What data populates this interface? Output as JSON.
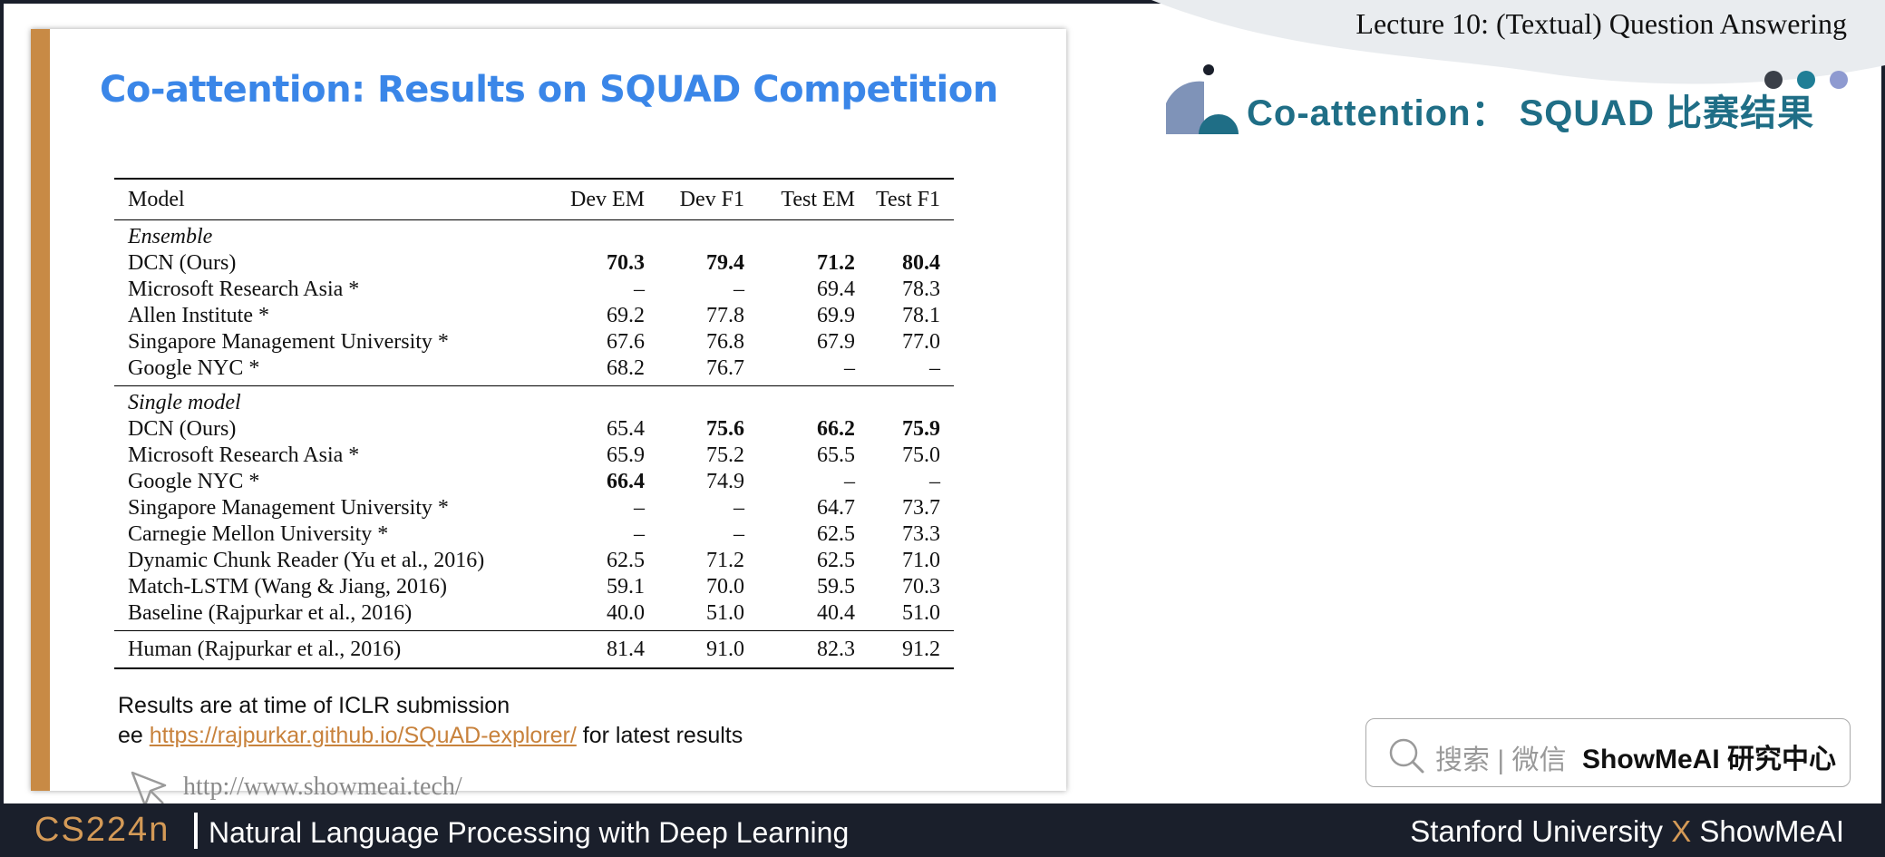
{
  "header": {
    "lecture_title": "Lecture 10: (Textual) Question Answering",
    "section_title": "Co-attention： SQUAD 比赛结果"
  },
  "slide": {
    "title": "Co-attention: Results on SQUAD Competition",
    "table": {
      "columns": [
        "Model",
        "Dev EM",
        "Dev F1",
        "Test EM",
        "Test F1"
      ],
      "groups": [
        {
          "label": "Ensemble",
          "rows": [
            {
              "model": "DCN (Ours)",
              "dev_em": "70.3",
              "dev_f1": "79.4",
              "test_em": "71.2",
              "test_f1": "80.4"
            },
            {
              "model": "Microsoft Research Asia *",
              "dev_em": "–",
              "dev_f1": "–",
              "test_em": "69.4",
              "test_f1": "78.3"
            },
            {
              "model": "Allen Institute *",
              "dev_em": "69.2",
              "dev_f1": "77.8",
              "test_em": "69.9",
              "test_f1": "78.1"
            },
            {
              "model": "Singapore Management University *",
              "dev_em": "67.6",
              "dev_f1": "76.8",
              "test_em": "67.9",
              "test_f1": "77.0"
            },
            {
              "model": "Google NYC *",
              "dev_em": "68.2",
              "dev_f1": "76.7",
              "test_em": "–",
              "test_f1": "–"
            }
          ]
        },
        {
          "label": "Single model",
          "rows": [
            {
              "model": "DCN (Ours)",
              "dev_em": "65.4",
              "dev_f1": "75.6",
              "test_em": "66.2",
              "test_f1": "75.9"
            },
            {
              "model": "Microsoft Research Asia *",
              "dev_em": "65.9",
              "dev_f1": "75.2",
              "test_em": "65.5",
              "test_f1": "75.0"
            },
            {
              "model": "Google NYC *",
              "dev_em": "66.4",
              "dev_f1": "74.9",
              "test_em": "–",
              "test_f1": "–"
            },
            {
              "model": "Singapore Management University *",
              "dev_em": "–",
              "dev_f1": "–",
              "test_em": "64.7",
              "test_f1": "73.7"
            },
            {
              "model": "Carnegie Mellon University *",
              "dev_em": "–",
              "dev_f1": "–",
              "test_em": "62.5",
              "test_f1": "73.3"
            },
            {
              "model": "Dynamic Chunk Reader (Yu et al., 2016)",
              "dev_em": "62.5",
              "dev_f1": "71.2",
              "test_em": "62.5",
              "test_f1": "71.0"
            },
            {
              "model": "Match-LSTM (Wang & Jiang, 2016)",
              "dev_em": "59.1",
              "dev_f1": "70.0",
              "test_em": "59.5",
              "test_f1": "70.3"
            },
            {
              "model": "Baseline (Rajpurkar et al., 2016)",
              "dev_em": "40.0",
              "dev_f1": "51.0",
              "test_em": "40.4",
              "test_f1": "51.0"
            }
          ]
        }
      ],
      "human": {
        "model": "Human (Rajpurkar et al., 2016)",
        "dev_em": "81.4",
        "dev_f1": "91.0",
        "test_em": "82.3",
        "test_f1": "91.2"
      }
    },
    "note1": "Results are at time of ICLR submission",
    "note2_prefix": "ee ",
    "note2_link": "https://rajpurkar.github.io/SQuAD-explorer/",
    "note2_suffix": " for latest results",
    "watermark": "http://www.showmeai.tech/"
  },
  "search_box": {
    "text": "搜索 | 微信",
    "brand": "ShowMeAI 研究中心",
    "icon": "search-icon"
  },
  "footer": {
    "course_code": "CS224n",
    "course_name": "Natural Language Processing with Deep Learning",
    "right_a": "Stanford University",
    "right_x": "X",
    "right_b": "ShowMeAI"
  },
  "colors": {
    "accent_bar": "#c88a45",
    "slide_title": "#3a86e8",
    "section_title": "#1f6e86",
    "footer_bg": "#1a1f2b",
    "footer_accent": "#d49a57"
  }
}
